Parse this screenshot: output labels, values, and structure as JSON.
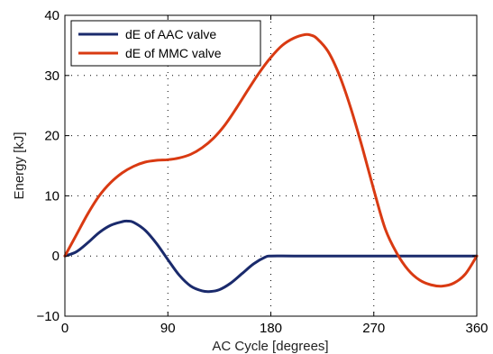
{
  "chart_data": {
    "type": "line",
    "title": "",
    "xlabel": "AC Cycle [degrees]",
    "ylabel": "Energy [kJ]",
    "xlim": [
      0,
      360
    ],
    "ylim": [
      -10,
      40
    ],
    "xticks": [
      0,
      90,
      180,
      270,
      360
    ],
    "yticks": [
      -10,
      0,
      10,
      20,
      30,
      40
    ],
    "grid": true,
    "legend_position": "top-left",
    "series": [
      {
        "name": "dE of AAC valve",
        "color": "#1a2a6c",
        "x": [
          0,
          10,
          20,
          30,
          40,
          50,
          55,
          60,
          70,
          80,
          90,
          100,
          110,
          120,
          127,
          135,
          145,
          155,
          165,
          175,
          180,
          200,
          240,
          280,
          320,
          360
        ],
        "y": [
          0,
          0.7,
          2.2,
          3.9,
          5.1,
          5.7,
          5.8,
          5.6,
          4.3,
          2.1,
          -0.6,
          -3.2,
          -5.0,
          -5.8,
          -5.9,
          -5.6,
          -4.5,
          -2.9,
          -1.3,
          -0.2,
          0,
          0,
          0,
          0,
          0,
          0
        ]
      },
      {
        "name": "dE of MMC valve",
        "color": "#d93a12",
        "x": [
          0,
          10,
          20,
          30,
          40,
          50,
          60,
          70,
          80,
          90,
          100,
          110,
          120,
          130,
          140,
          150,
          160,
          170,
          180,
          190,
          200,
          210,
          215,
          220,
          230,
          240,
          250,
          260,
          270,
          280,
          290,
          300,
          310,
          320,
          330,
          340,
          350,
          360
        ],
        "y": [
          0,
          3.5,
          7.0,
          10.0,
          12.2,
          13.8,
          14.9,
          15.6,
          15.9,
          16.0,
          16.3,
          16.9,
          18.0,
          19.6,
          21.8,
          24.6,
          27.6,
          30.5,
          33.0,
          35.0,
          36.2,
          36.8,
          36.7,
          36.2,
          34.0,
          30.0,
          24.5,
          18.0,
          11.0,
          4.5,
          0.5,
          -2.3,
          -4.0,
          -4.8,
          -5.0,
          -4.5,
          -3.0,
          0
        ]
      }
    ]
  }
}
